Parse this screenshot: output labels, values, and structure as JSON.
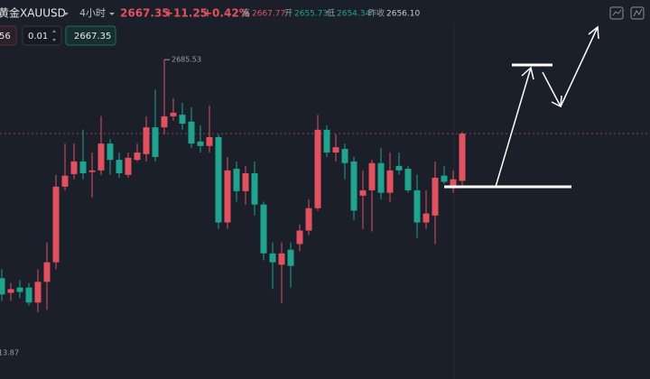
{
  "ui": {
    "symbol_cn": "黄金",
    "symbol": "XAUUSD",
    "interval": "4小时",
    "price": "2667.35",
    "change": "+11.25",
    "change_pct": "+0.42%",
    "high_label": "高",
    "high": "2667.77",
    "open_label": "开",
    "open": "2655.73",
    "low_label": "低",
    "low": "2654.34",
    "prev_label": "昨收",
    "prev": "2656.10",
    "left_box": "56",
    "lot": "0.01",
    "price_box": "2667.35",
    "low_mark": "13.87"
  },
  "chart_data": {
    "type": "candlestick",
    "up_color": "#e2515f",
    "down_color": "#1fa38f",
    "ylim": [
      2607,
      2694
    ],
    "last_price": 2667.35,
    "ohlc": [
      [
        2631.8,
        2634.0,
        2626.2,
        2627.8
      ],
      [
        2628.2,
        2630.6,
        2626.2,
        2629.1
      ],
      [
        2629.5,
        2631.3,
        2626.9,
        2628.4
      ],
      [
        2629.5,
        2630.6,
        2625.1,
        2625.8
      ],
      [
        2625.8,
        2634.0,
        2623.4,
        2630.9
      ],
      [
        2630.9,
        2640.6,
        2624.0,
        2635.7
      ],
      [
        2635.7,
        2657.2,
        2634.0,
        2654.3
      ],
      [
        2654.3,
        2664.9,
        2653.4,
        2657.0
      ],
      [
        2657.4,
        2664.9,
        2656.1,
        2660.5
      ],
      [
        2660.5,
        2668.3,
        2656.1,
        2657.6
      ],
      [
        2657.9,
        2662.7,
        2651.7,
        2658.3
      ],
      [
        2658.3,
        2671.6,
        2657.2,
        2664.9
      ],
      [
        2664.9,
        2666.0,
        2657.2,
        2660.9
      ],
      [
        2660.9,
        2662.7,
        2656.5,
        2657.6
      ],
      [
        2657.2,
        2662.7,
        2656.5,
        2661.4
      ],
      [
        2660.9,
        2664.9,
        2660.5,
        2662.7
      ],
      [
        2662.3,
        2671.6,
        2660.5,
        2668.9
      ],
      [
        2668.9,
        2678.2,
        2660.5,
        2661.6
      ],
      [
        2668.9,
        2685.53,
        2667.2,
        2671.6
      ],
      [
        2671.6,
        2676.0,
        2670.5,
        2672.5
      ],
      [
        2672.0,
        2674.9,
        2668.3,
        2669.8
      ],
      [
        2670.3,
        2673.8,
        2663.8,
        2664.9
      ],
      [
        2665.4,
        2669.4,
        2662.7,
        2664.3
      ],
      [
        2664.3,
        2674.2,
        2662.7,
        2666.5
      ],
      [
        2666.5,
        2667.2,
        2643.9,
        2645.5
      ],
      [
        2645.5,
        2661.6,
        2643.9,
        2658.3
      ],
      [
        2658.7,
        2660.5,
        2650.6,
        2653.2
      ],
      [
        2653.2,
        2659.4,
        2649.9,
        2657.6
      ],
      [
        2657.6,
        2660.5,
        2647.2,
        2649.9
      ],
      [
        2649.9,
        2650.6,
        2636.2,
        2637.9
      ],
      [
        2637.9,
        2640.6,
        2629.1,
        2635.7
      ],
      [
        2635.1,
        2640.6,
        2625.6,
        2637.9
      ],
      [
        2638.8,
        2640.6,
        2629.5,
        2634.8
      ],
      [
        2640.2,
        2645.0,
        2638.4,
        2643.5
      ],
      [
        2643.5,
        2651.2,
        2642.4,
        2649.0
      ],
      [
        2649.0,
        2672.0,
        2648.4,
        2668.3
      ],
      [
        2668.3,
        2669.4,
        2661.6,
        2662.7
      ],
      [
        2662.7,
        2667.2,
        2660.5,
        2664.0
      ],
      [
        2663.6,
        2664.9,
        2656.1,
        2660.1
      ],
      [
        2660.5,
        2661.6,
        2646.1,
        2648.4
      ],
      [
        2652.1,
        2658.3,
        2643.9,
        2653.4
      ],
      [
        2653.4,
        2660.9,
        2643.3,
        2660.1
      ],
      [
        2660.1,
        2663.8,
        2651.2,
        2652.8
      ],
      [
        2652.8,
        2662.7,
        2650.6,
        2658.3
      ],
      [
        2659.4,
        2662.7,
        2657.2,
        2658.3
      ],
      [
        2658.7,
        2659.4,
        2652.8,
        2653.4
      ],
      [
        2653.4,
        2657.2,
        2641.7,
        2645.5
      ],
      [
        2645.5,
        2653.4,
        2643.9,
        2647.7
      ],
      [
        2647.2,
        2660.5,
        2640.2,
        2656.5
      ],
      [
        2657.0,
        2659.4,
        2655.0,
        2655.5
      ],
      [
        2653.9,
        2658.3,
        2652.8,
        2656.1
      ],
      [
        2655.73,
        2667.77,
        2654.34,
        2667.35
      ]
    ]
  }
}
